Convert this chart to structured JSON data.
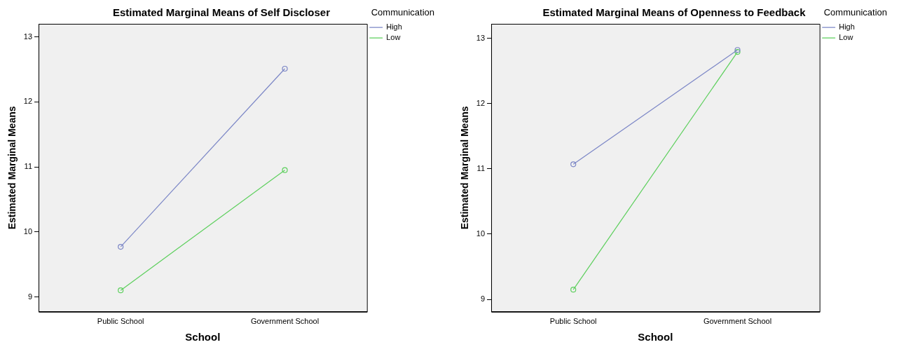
{
  "chart_data": [
    {
      "type": "line",
      "title": "Estimated Marginal Means of Self Discloser",
      "xlabel": "School",
      "ylabel": "Estimated Marginal Means",
      "legend_title": "Communication",
      "categories": [
        "Public School",
        "Government School"
      ],
      "series": [
        {
          "name": "High",
          "color": "#7b86c6",
          "values": [
            9.77,
            12.51
          ]
        },
        {
          "name": "Low",
          "color": "#5ccf5c",
          "values": [
            9.1,
            10.95
          ]
        }
      ],
      "ylim": [
        8.77,
        13.2
      ],
      "yticks": [
        9,
        10,
        11,
        12,
        13
      ],
      "grid": false,
      "legend": "right",
      "marker": "circle",
      "line_style": "solid"
    },
    {
      "type": "line",
      "title": "Estimated Marginal Means of Openness to Feedback",
      "xlabel": "School",
      "ylabel": "Estimated Marginal Means",
      "legend_title": "Communication",
      "categories": [
        "Public School",
        "Government School"
      ],
      "series": [
        {
          "name": "High",
          "color": "#7b86c6",
          "values": [
            11.07,
            12.82
          ]
        },
        {
          "name": "Low",
          "color": "#5ccf5c",
          "values": [
            9.15,
            12.79
          ]
        }
      ],
      "ylim": [
        8.81,
        13.22
      ],
      "yticks": [
        9,
        10,
        11,
        12,
        13
      ],
      "grid": false,
      "legend": "right",
      "marker": "circle",
      "line_style": "solid"
    }
  ]
}
